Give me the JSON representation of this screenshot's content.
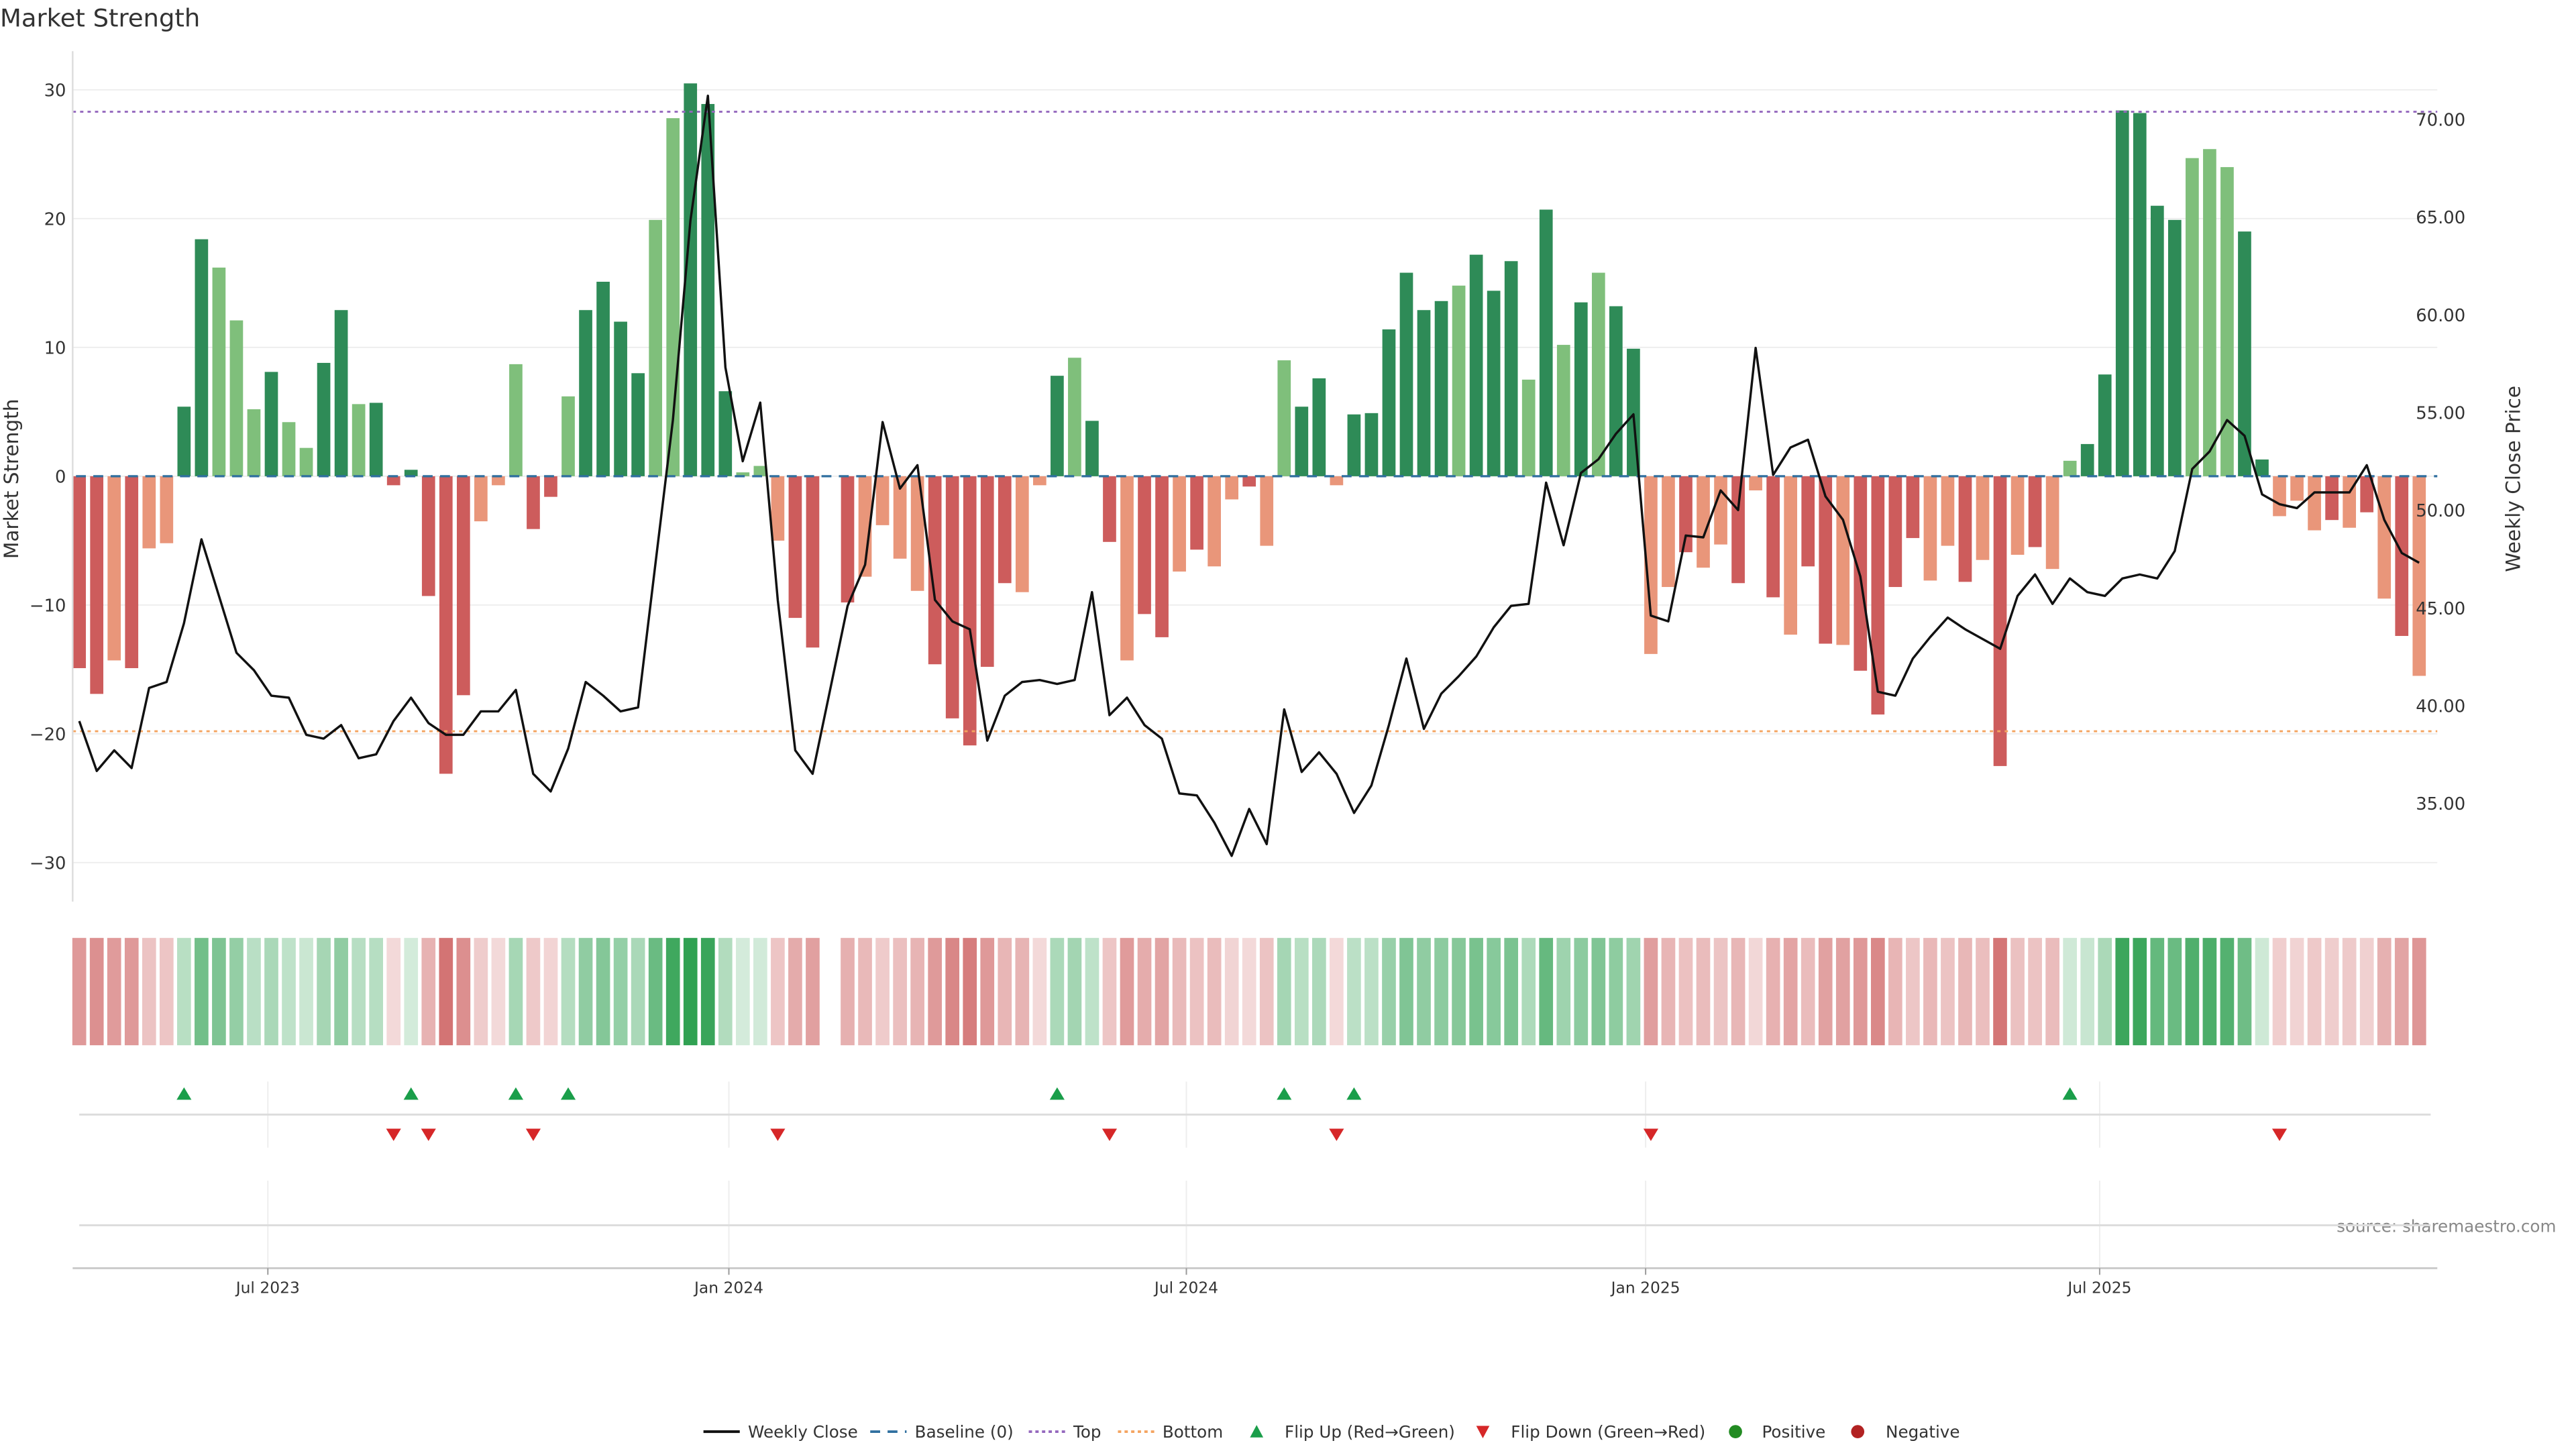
{
  "chart_data": {
    "type": "bar",
    "title": "Market Strength",
    "ylabel": "Market Strength",
    "y2label": "Weekly Close Price",
    "source": "source: sharemaestro.com",
    "ylim": [
      -33,
      33
    ],
    "y2lim": [
      30.1,
      73.3
    ],
    "yticks": [
      -30,
      -20,
      -10,
      0,
      10,
      20,
      30
    ],
    "yticklabels": [
      "−30",
      "−20",
      "−10",
      "0",
      "10",
      "20",
      "30"
    ],
    "y2ticks": [
      35,
      40,
      45,
      50,
      55,
      60,
      65,
      70
    ],
    "y2ticklabels": [
      "35.00",
      "40.00",
      "45.00",
      "50.00",
      "55.00",
      "60.00",
      "65.00",
      "70.00"
    ],
    "x_unit": "week index",
    "x_ticks": [
      {
        "label": "Jul 2023",
        "week": 10.8
      },
      {
        "label": "Jan 2024",
        "week": 37.2
      },
      {
        "label": "Jul 2024",
        "week": 63.4
      },
      {
        "label": "Jan 2025",
        "week": 89.7
      },
      {
        "label": "Jul 2025",
        "week": 115.7
      }
    ],
    "grid": true,
    "top_level": 28.3,
    "bottom_level": -19.8,
    "baseline": 0,
    "strength": [
      -14.9,
      -16.9,
      -14.3,
      -14.9,
      -5.6,
      -5.2,
      5.4,
      18.4,
      16.2,
      12.1,
      5.2,
      8.1,
      4.2,
      2.2,
      8.8,
      12.9,
      5.6,
      5.7,
      -0.7,
      0.5,
      -9.3,
      -23.1,
      -17.0,
      -3.5,
      -0.7,
      8.7,
      -4.1,
      -1.6,
      6.2,
      12.9,
      15.1,
      12.0,
      8.0,
      19.9,
      27.8,
      30.5,
      28.9,
      6.6,
      0.3,
      0.8,
      -5.0,
      -11.0,
      -13.3,
      null,
      -9.8,
      -7.8,
      -3.8,
      -6.4,
      -8.9,
      -14.6,
      -18.8,
      -20.9,
      -14.8,
      -8.3,
      -9.0,
      -0.7,
      7.8,
      9.2,
      4.3,
      -5.1,
      -14.3,
      -10.7,
      -12.5,
      -7.4,
      -5.7,
      -7.0,
      -1.8,
      -0.8,
      -5.4,
      9.0,
      5.4,
      7.6,
      -0.7,
      4.8,
      4.9,
      11.4,
      15.8,
      12.9,
      13.6,
      14.8,
      17.2,
      14.4,
      16.7,
      7.5,
      20.7,
      10.2,
      13.5,
      15.8,
      13.2,
      9.9,
      -13.8,
      -8.6,
      -5.9,
      -7.1,
      -5.3,
      -8.3,
      -1.1,
      -9.4,
      -12.3,
      -7.0,
      -13.0,
      -13.1,
      -15.1,
      -18.5,
      -8.6,
      -4.8,
      -8.1,
      -5.4,
      -8.2,
      -6.5,
      -22.5,
      -6.1,
      -5.5,
      -7.2,
      1.2,
      2.5,
      7.9,
      28.4,
      28.2,
      21.0,
      19.9,
      24.7,
      25.4,
      24.0,
      19.0,
      1.3,
      -3.1,
      -1.9,
      -4.2,
      -3.4,
      -4.0,
      -2.8,
      -9.5,
      -12.4,
      -15.5
    ],
    "shade": "ddldllddllldllddlddddddlllddlddddlldddllldddd-lllddd ddlldlddlddldlldlldd lddddddldddldldlddlldlldldlddlddddlldldldllddddddlllddllldldldlddd",
    "weekly_close": [
      39.2,
      36.65,
      37.7,
      36.8,
      40.9,
      41.2,
      44.2,
      48.5,
      45.6,
      42.7,
      41.8,
      40.5,
      40.4,
      38.5,
      38.3,
      39.0,
      37.3,
      37.5,
      39.2,
      40.4,
      39.1,
      38.5,
      38.5,
      39.7,
      39.7,
      40.8,
      36.5,
      35.6,
      37.8,
      41.2,
      40.5,
      39.7,
      39.9,
      47.3,
      54.6,
      64.8,
      71.2,
      57.3,
      52.5,
      55.5,
      45.4,
      37.7,
      36.5,
      40.8,
      45.1,
      47.2,
      54.5,
      51.1,
      52.3,
      45.4,
      44.3,
      43.9,
      38.2,
      40.5,
      41.2,
      41.3,
      41.1,
      41.3,
      45.8,
      39.5,
      40.4,
      39.0,
      38.3,
      35.5,
      35.4,
      34.0,
      32.3,
      34.7,
      32.9,
      39.8,
      36.6,
      37.6,
      36.5,
      34.5,
      35.9,
      39.0,
      42.4,
      38.8,
      40.6,
      41.5,
      42.5,
      44.0,
      45.1,
      45.2,
      51.4,
      48.2,
      51.9,
      52.6,
      53.9,
      54.9,
      44.6,
      44.3,
      48.7,
      48.6,
      51.0,
      50.0,
      58.3,
      51.8,
      53.2,
      53.6,
      50.7,
      49.5,
      46.6,
      40.7,
      40.5,
      42.4,
      43.5,
      44.5,
      43.9,
      43.4,
      42.9,
      45.6,
      46.7,
      45.2,
      46.5,
      45.8,
      45.6,
      46.5,
      46.7,
      46.5,
      47.9,
      52.1,
      53.0,
      54.6,
      53.8,
      50.8,
      50.3,
      50.1,
      50.9,
      50.9,
      50.9,
      52.3,
      49.5,
      47.8,
      47.3
    ],
    "flip_up_weeks": [
      6,
      19,
      25,
      28,
      56,
      69,
      73,
      114
    ],
    "flip_down_weeks": [
      18,
      20,
      26,
      40,
      59,
      72,
      90,
      126
    ],
    "legend_position": "bottom-center",
    "legend": [
      {
        "label": "Weekly Close",
        "kind": "line"
      },
      {
        "label": "Baseline (0)",
        "kind": "dash"
      },
      {
        "label": "Top",
        "kind": "dot-top"
      },
      {
        "label": "Bottom",
        "kind": "dot-bottom"
      },
      {
        "label": "Flip Up (Red→Green)",
        "kind": "tri-up"
      },
      {
        "label": "Flip Down (Green→Red)",
        "kind": "tri-down"
      },
      {
        "label": "Positive",
        "kind": "circle-pos"
      },
      {
        "label": "Negative",
        "kind": "circle-neg"
      }
    ],
    "colors": {
      "pos_dark": "#2e8b57",
      "pos_light": "#7fbf7b",
      "neg_dark": "#cd5c5c",
      "neg_light": "#e9967a",
      "line": "#111111",
      "baseline": "#2f6f9f",
      "top": "#9467bd",
      "bottom": "#f4a460",
      "flip_up": "#1a9e4a",
      "flip_down": "#d62728",
      "positive": "#228b22",
      "negative": "#b22222"
    }
  }
}
